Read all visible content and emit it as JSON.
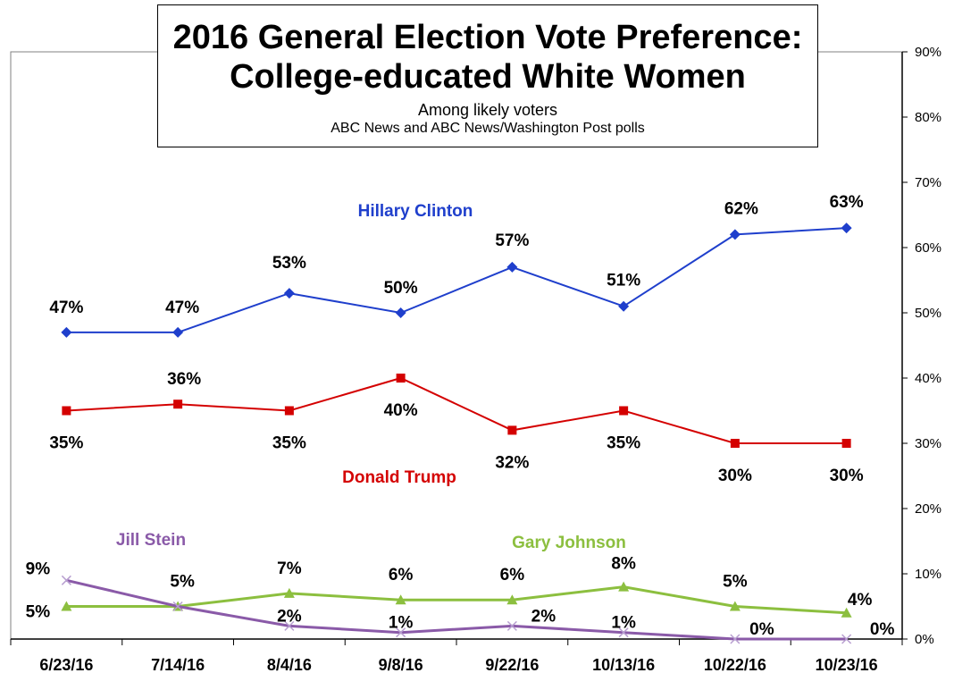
{
  "chart_data": {
    "type": "line",
    "title": [
      "2016 General Election Vote Preference:",
      "College-educated White Women"
    ],
    "subtitle": "Among likely voters",
    "source": "ABC News  and  ABC News/Washington  Post polls",
    "categories": [
      "6/23/16",
      "7/14/16",
      "8/4/16",
      "9/8/16",
      "9/22/16",
      "10/13/16",
      "10/22/16",
      "10/23/16"
    ],
    "yaxis": {
      "side": "right",
      "ylim": [
        0,
        90
      ],
      "ticks": [
        "0%",
        "10%",
        "20%",
        "30%",
        "40%",
        "50%",
        "60%",
        "70%",
        "80%",
        "90%"
      ]
    },
    "grid": false,
    "series": [
      {
        "name": "Hillary Clinton",
        "color": "#1f3fcc",
        "marker": "diamond",
        "values": [
          47,
          47,
          53,
          50,
          57,
          51,
          62,
          63
        ],
        "labels": [
          "47%",
          "47%",
          "53%",
          "50%",
          "57%",
          "51%",
          "62%",
          "63%"
        ]
      },
      {
        "name": "Donald Trump",
        "color": "#d40000",
        "marker": "square",
        "values": [
          35,
          36,
          35,
          40,
          32,
          35,
          30,
          30
        ],
        "labels": [
          "35%",
          "36%",
          "35%",
          "40%",
          "32%",
          "35%",
          "30%",
          "30%"
        ]
      },
      {
        "name": "Gary Johnson",
        "color": "#8cbf3f",
        "marker": "triangle",
        "values": [
          5,
          5,
          7,
          6,
          6,
          8,
          5,
          4
        ],
        "labels": [
          "5%",
          "5%",
          "7%",
          "6%",
          "6%",
          "8%",
          "5%",
          "4%"
        ]
      },
      {
        "name": "Jill Stein",
        "color": "#8a5aa8",
        "marker": "x",
        "values": [
          9,
          5,
          2,
          1,
          2,
          1,
          0,
          0
        ],
        "labels": [
          "9%",
          "",
          "2%",
          "1%",
          "2%",
          "1%",
          "0%",
          "0%"
        ]
      }
    ]
  }
}
